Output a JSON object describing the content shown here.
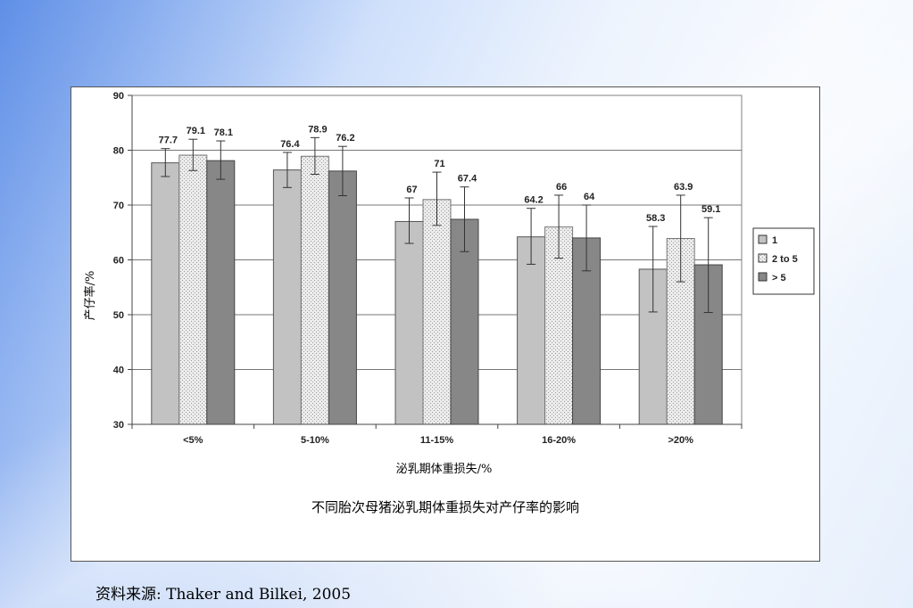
{
  "chart_data": {
    "type": "bar",
    "title": "",
    "xlabel": "泌乳期体重损失/%",
    "ylabel": "产仔率/%",
    "ylim": [
      30,
      90
    ],
    "yticks": [
      30,
      40,
      50,
      60,
      70,
      80,
      90
    ],
    "grid": true,
    "legend_position": "right",
    "categories": [
      "<5%",
      "5-10%",
      "11-15%",
      "16-20%",
      ">20%"
    ],
    "series": [
      {
        "name": "1",
        "color": "#c0c0c0",
        "values": [
          77.7,
          76.4,
          67,
          64.2,
          58.3
        ],
        "labels": [
          "77.7",
          "76.4",
          "67",
          "64.2",
          "58.3"
        ],
        "error_low": [
          75.2,
          73.2,
          63.0,
          59.2,
          50.5
        ],
        "error_high": [
          80.3,
          79.6,
          71.3,
          69.4,
          66.1
        ]
      },
      {
        "name": "2 to 5",
        "color": "#e6e6e6",
        "values": [
          79.1,
          78.9,
          71,
          66,
          63.9
        ],
        "labels": [
          "79.1",
          "78.9",
          "71",
          "66",
          "63.9"
        ],
        "error_low": [
          76.3,
          75.6,
          66.3,
          60.3,
          56.0
        ],
        "error_high": [
          82.0,
          82.3,
          76.0,
          71.8,
          71.8
        ]
      },
      {
        "name": "> 5",
        "color": "#858585",
        "values": [
          78.1,
          76.2,
          67.4,
          64,
          59.1
        ],
        "labels": [
          "78.1",
          "76.2",
          "67.4",
          "64",
          "59.1"
        ],
        "error_low": [
          74.7,
          71.7,
          61.5,
          58.0,
          50.4
        ],
        "error_high": [
          81.7,
          80.7,
          73.3,
          70.0,
          67.7
        ]
      }
    ]
  },
  "caption": "不同胎次母猪泌乳期体重损失对产仔率的影响",
  "source": "资料来源: Thaker and Bilkei, 2005"
}
